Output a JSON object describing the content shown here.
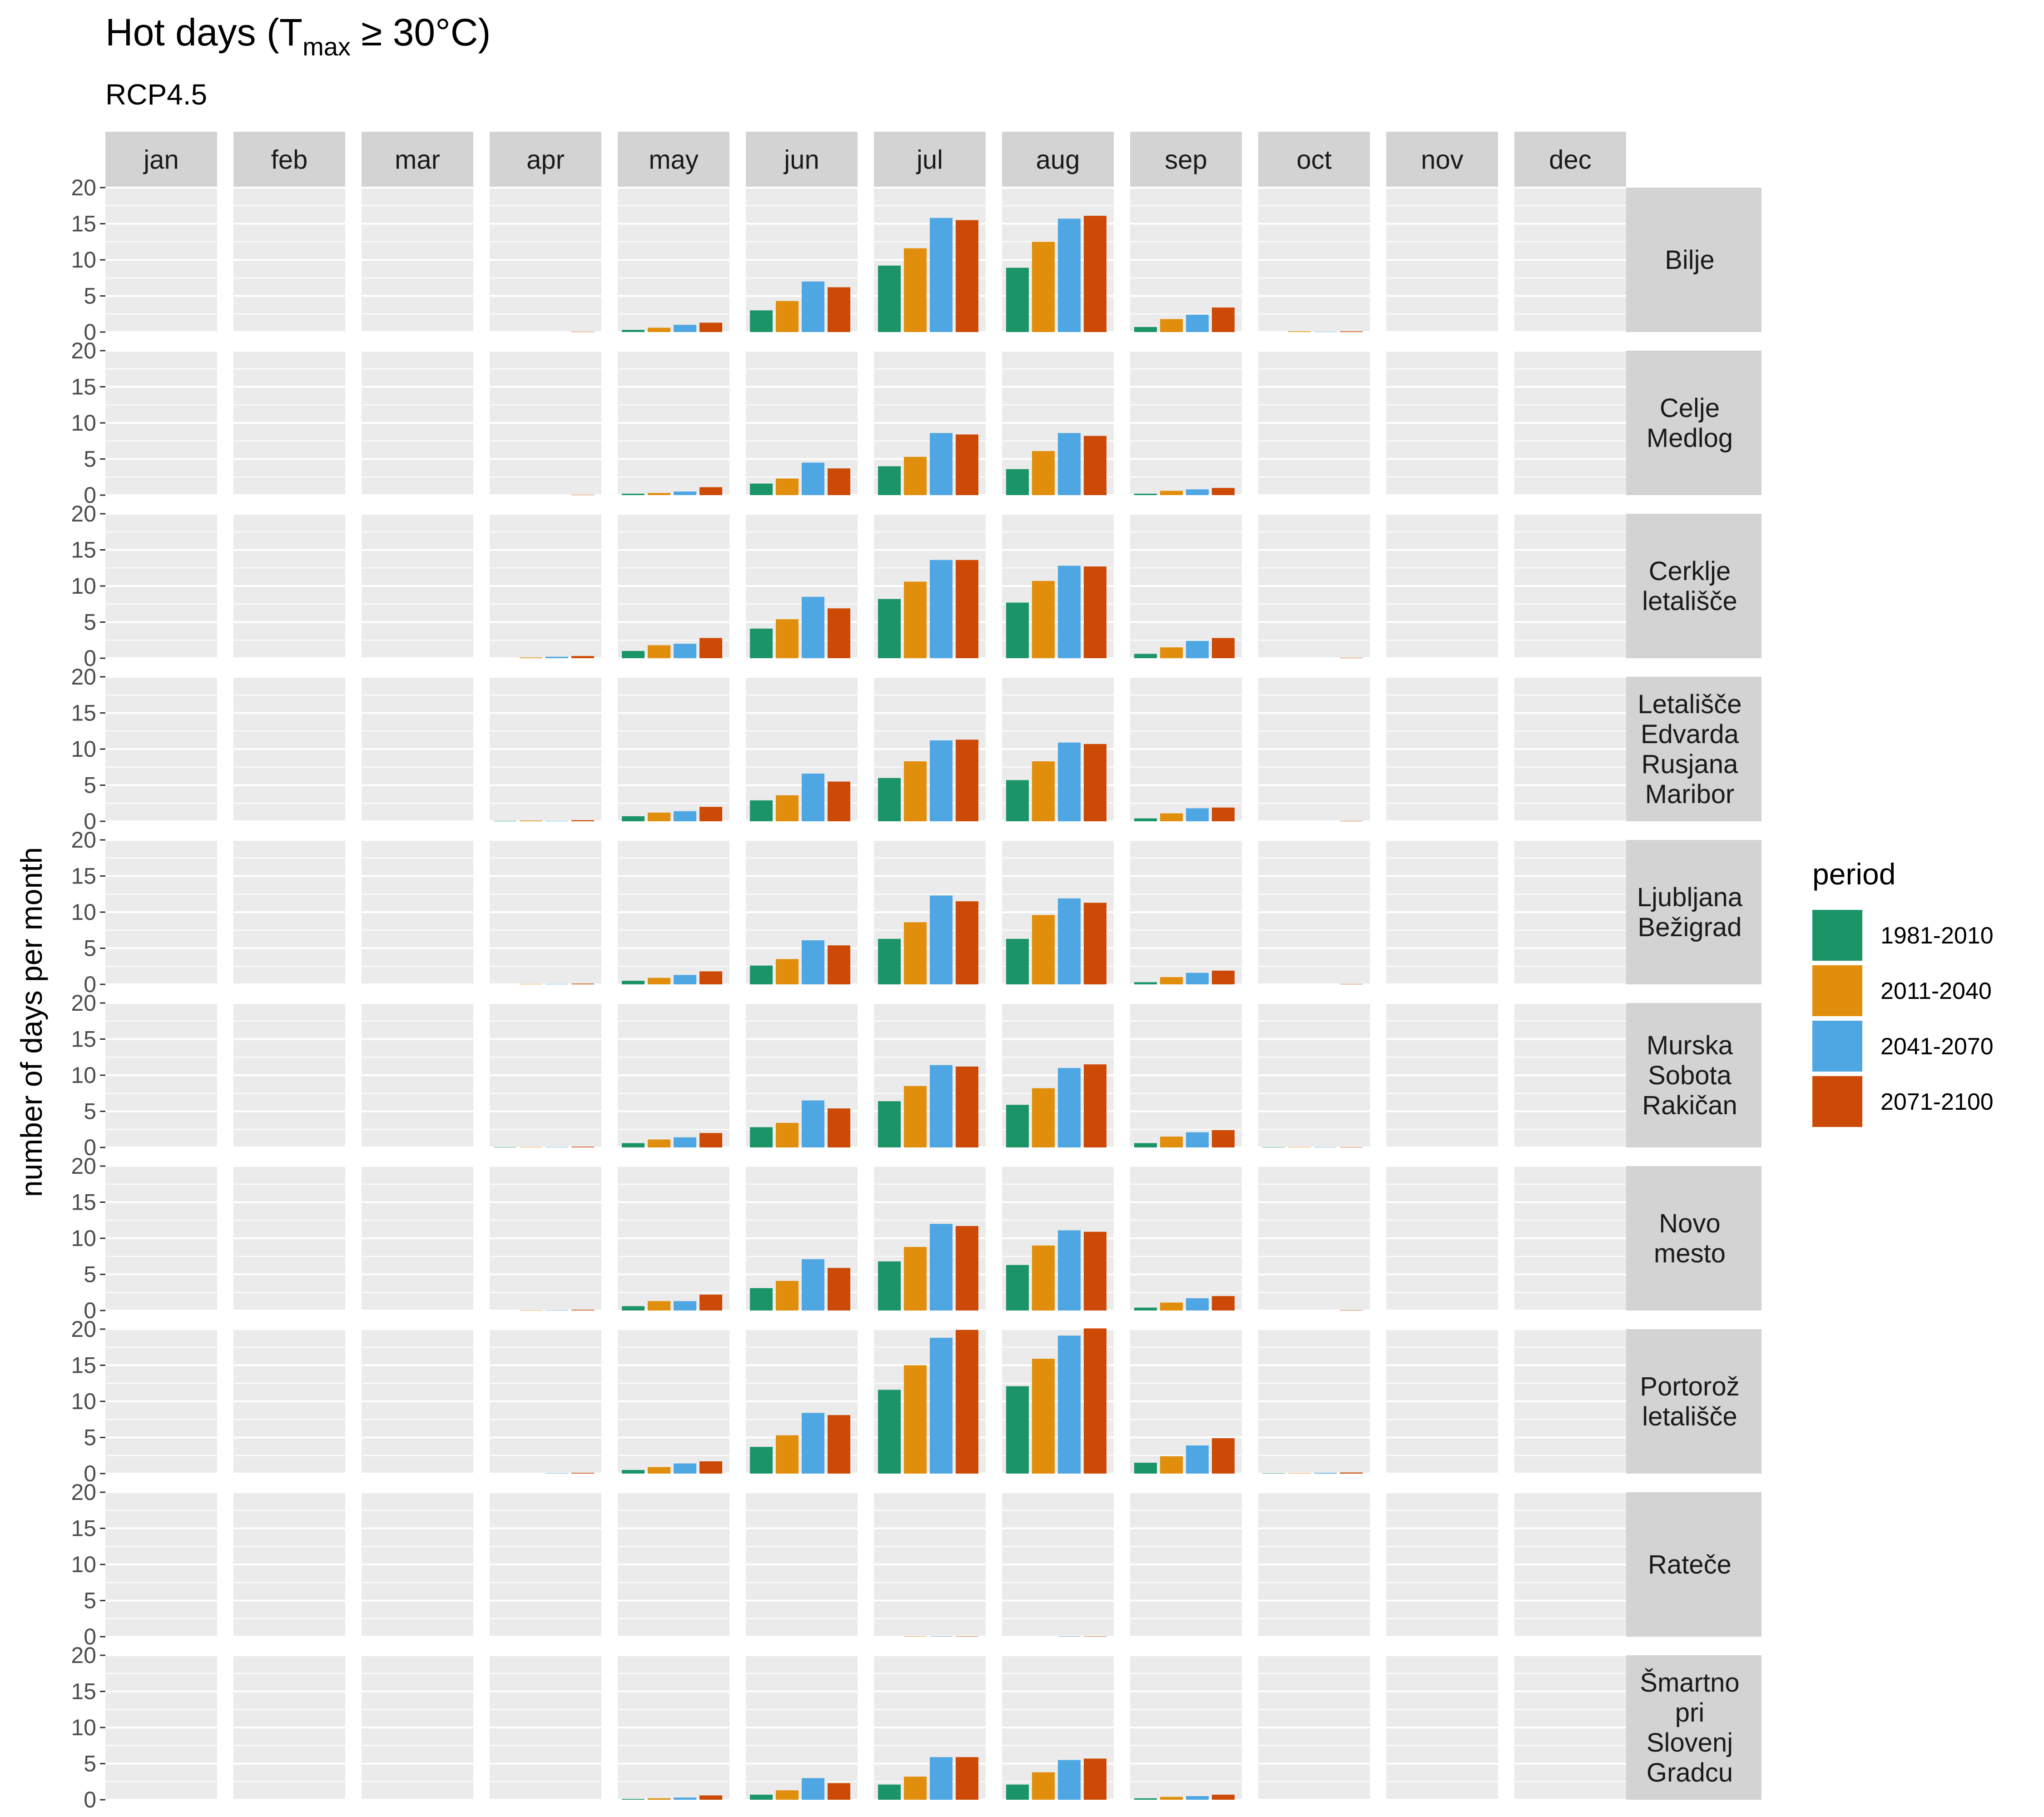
{
  "chart_data": {
    "type": "bar",
    "title": "Hot days (T",
    "title_subscript": "max",
    "title_suffix": " ≥ 30°C)",
    "subtitle": "RCP4.5",
    "ylabel": "number of days per month",
    "xlabel": "",
    "ylim": [
      0,
      20
    ],
    "y_ticks": [
      "0",
      "5",
      "10",
      "15",
      "20"
    ],
    "grid": true,
    "legend_position": "right",
    "legend_title": "period",
    "months": [
      "jan",
      "feb",
      "mar",
      "apr",
      "may",
      "jun",
      "jul",
      "aug",
      "sep",
      "oct",
      "nov",
      "dec"
    ],
    "stations": [
      {
        "label_lines": [
          "Bilje"
        ]
      },
      {
        "label_lines": [
          "Celje",
          "Medlog"
        ]
      },
      {
        "label_lines": [
          "Cerklje",
          "letališče"
        ]
      },
      {
        "label_lines": [
          "Letališče",
          "Edvarda",
          "Rusjana",
          "Maribor"
        ]
      },
      {
        "label_lines": [
          "Ljubljana",
          "Bežigrad"
        ]
      },
      {
        "label_lines": [
          "Murska",
          "Sobota",
          "Rakičan"
        ]
      },
      {
        "label_lines": [
          "Novo",
          "mesto"
        ]
      },
      {
        "label_lines": [
          "Portorož",
          "letališče"
        ]
      },
      {
        "label_lines": [
          "Rateče"
        ]
      },
      {
        "label_lines": [
          "Šmartno",
          "pri",
          "Slovenj",
          "Gradcu"
        ]
      }
    ],
    "series": [
      {
        "name": "1981-2010",
        "color": "#1b9467"
      },
      {
        "name": "2011-2040",
        "color": "#e08e0b"
      },
      {
        "name": "2041-2070",
        "color": "#4ea6e2"
      },
      {
        "name": "2071-2100",
        "color": "#cc4a06"
      }
    ],
    "values_note_order": "values[station][month] = [1981-2010, 2011-2040, 2041-2070, 2071-2100]",
    "values": [
      [
        [
          0,
          0,
          0,
          0
        ],
        [
          0,
          0,
          0,
          0
        ],
        [
          0,
          0,
          0,
          0
        ],
        [
          0,
          0,
          0,
          0.05
        ],
        [
          0.3,
          0.6,
          1.0,
          1.3
        ],
        [
          3.0,
          4.3,
          7.0,
          6.2
        ],
        [
          9.2,
          11.6,
          15.8,
          15.5
        ],
        [
          8.9,
          12.5,
          15.7,
          16.1
        ],
        [
          0.7,
          1.8,
          2.4,
          3.4
        ],
        [
          0,
          0.1,
          0.05,
          0.1
        ],
        [
          0,
          0,
          0,
          0
        ],
        [
          0,
          0,
          0,
          0
        ]
      ],
      [
        [
          0,
          0,
          0,
          0
        ],
        [
          0,
          0,
          0,
          0
        ],
        [
          0,
          0,
          0,
          0
        ],
        [
          0,
          0,
          0,
          0.05
        ],
        [
          0.2,
          0.3,
          0.5,
          1.1
        ],
        [
          1.6,
          2.3,
          4.5,
          3.7
        ],
        [
          4.0,
          5.3,
          8.6,
          8.4
        ],
        [
          3.6,
          6.1,
          8.6,
          8.2
        ],
        [
          0.2,
          0.6,
          0.8,
          1.0
        ],
        [
          0,
          0,
          0,
          0
        ],
        [
          0,
          0,
          0,
          0
        ],
        [
          0,
          0,
          0,
          0
        ]
      ],
      [
        [
          0,
          0,
          0,
          0
        ],
        [
          0,
          0,
          0,
          0
        ],
        [
          0,
          0,
          0,
          0
        ],
        [
          0,
          0.1,
          0.2,
          0.3
        ],
        [
          1.0,
          1.8,
          2.0,
          2.8
        ],
        [
          4.1,
          5.4,
          8.5,
          6.9
        ],
        [
          8.2,
          10.6,
          13.6,
          13.6
        ],
        [
          7.7,
          10.7,
          12.8,
          12.7
        ],
        [
          0.6,
          1.5,
          2.4,
          2.8
        ],
        [
          0,
          0,
          0,
          0.05
        ],
        [
          0,
          0,
          0,
          0
        ],
        [
          0,
          0,
          0,
          0
        ]
      ],
      [
        [
          0,
          0,
          0,
          0
        ],
        [
          0,
          0,
          0,
          0
        ],
        [
          0,
          0,
          0,
          0
        ],
        [
          0.05,
          0.1,
          0.05,
          0.15
        ],
        [
          0.7,
          1.2,
          1.4,
          2.0
        ],
        [
          2.9,
          3.6,
          6.6,
          5.5
        ],
        [
          6.0,
          8.3,
          11.2,
          11.3
        ],
        [
          5.7,
          8.3,
          10.9,
          10.7
        ],
        [
          0.4,
          1.1,
          1.8,
          1.9
        ],
        [
          0,
          0,
          0,
          0.05
        ],
        [
          0,
          0,
          0,
          0
        ],
        [
          0,
          0,
          0,
          0
        ]
      ],
      [
        [
          0,
          0,
          0,
          0
        ],
        [
          0,
          0,
          0,
          0
        ],
        [
          0,
          0,
          0,
          0
        ],
        [
          0,
          0.05,
          0.05,
          0.1
        ],
        [
          0.5,
          0.9,
          1.3,
          1.8
        ],
        [
          2.6,
          3.5,
          6.1,
          5.4
        ],
        [
          6.3,
          8.6,
          12.3,
          11.5
        ],
        [
          6.3,
          9.6,
          11.9,
          11.3
        ],
        [
          0.3,
          1.0,
          1.6,
          1.9
        ],
        [
          0,
          0,
          0,
          0.05
        ],
        [
          0,
          0,
          0,
          0
        ],
        [
          0,
          0,
          0,
          0
        ]
      ],
      [
        [
          0,
          0,
          0,
          0
        ],
        [
          0,
          0,
          0,
          0
        ],
        [
          0,
          0,
          0,
          0
        ],
        [
          0.05,
          0.05,
          0.05,
          0.1
        ],
        [
          0.6,
          1.1,
          1.4,
          2.0
        ],
        [
          2.8,
          3.4,
          6.5,
          5.4
        ],
        [
          6.4,
          8.5,
          11.4,
          11.2
        ],
        [
          5.9,
          8.2,
          11.0,
          11.5
        ],
        [
          0.6,
          1.5,
          2.1,
          2.4
        ],
        [
          0.05,
          0.05,
          0.05,
          0.05
        ],
        [
          0,
          0,
          0,
          0
        ],
        [
          0,
          0,
          0,
          0
        ]
      ],
      [
        [
          0,
          0,
          0,
          0
        ],
        [
          0,
          0,
          0,
          0
        ],
        [
          0,
          0,
          0,
          0
        ],
        [
          0,
          0.05,
          0.05,
          0.1
        ],
        [
          0.6,
          1.3,
          1.3,
          2.2
        ],
        [
          3.1,
          4.1,
          7.1,
          5.9
        ],
        [
          6.8,
          8.8,
          12.0,
          11.7
        ],
        [
          6.3,
          9.0,
          11.1,
          10.9
        ],
        [
          0.4,
          1.1,
          1.7,
          2.0
        ],
        [
          0,
          0,
          0,
          0.05
        ],
        [
          0,
          0,
          0,
          0
        ],
        [
          0,
          0,
          0,
          0
        ]
      ],
      [
        [
          0,
          0,
          0,
          0
        ],
        [
          0,
          0,
          0,
          0
        ],
        [
          0,
          0,
          0,
          0
        ],
        [
          0,
          0,
          0.05,
          0.1
        ],
        [
          0.5,
          0.9,
          1.4,
          1.7
        ],
        [
          3.7,
          5.3,
          8.4,
          8.1
        ],
        [
          11.6,
          15.0,
          18.8,
          19.9
        ],
        [
          12.1,
          15.9,
          19.1,
          20.1
        ],
        [
          1.5,
          2.4,
          3.9,
          4.9
        ],
        [
          0.05,
          0.05,
          0.1,
          0.15
        ],
        [
          0,
          0,
          0,
          0
        ],
        [
          0,
          0,
          0,
          0
        ]
      ],
      [
        [
          0,
          0,
          0,
          0
        ],
        [
          0,
          0,
          0,
          0
        ],
        [
          0,
          0,
          0,
          0
        ],
        [
          0,
          0,
          0,
          0
        ],
        [
          0,
          0,
          0,
          0
        ],
        [
          0,
          0,
          0,
          0
        ],
        [
          0,
          0.05,
          0.05,
          0.05
        ],
        [
          0,
          0,
          0.05,
          0.05
        ],
        [
          0,
          0,
          0,
          0
        ],
        [
          0,
          0,
          0,
          0
        ],
        [
          0,
          0,
          0,
          0
        ],
        [
          0,
          0,
          0,
          0
        ]
      ],
      [
        [
          0,
          0,
          0,
          0
        ],
        [
          0,
          0,
          0,
          0
        ],
        [
          0,
          0,
          0,
          0
        ],
        [
          0,
          0,
          0,
          0
        ],
        [
          0.1,
          0.2,
          0.3,
          0.6
        ],
        [
          0.7,
          1.3,
          3.0,
          2.3
        ],
        [
          2.1,
          3.2,
          5.9,
          5.9
        ],
        [
          2.1,
          3.8,
          5.5,
          5.7
        ],
        [
          0.2,
          0.4,
          0.5,
          0.7
        ],
        [
          0,
          0,
          0,
          0
        ],
        [
          0,
          0,
          0,
          0
        ],
        [
          0,
          0,
          0,
          0
        ]
      ]
    ]
  }
}
